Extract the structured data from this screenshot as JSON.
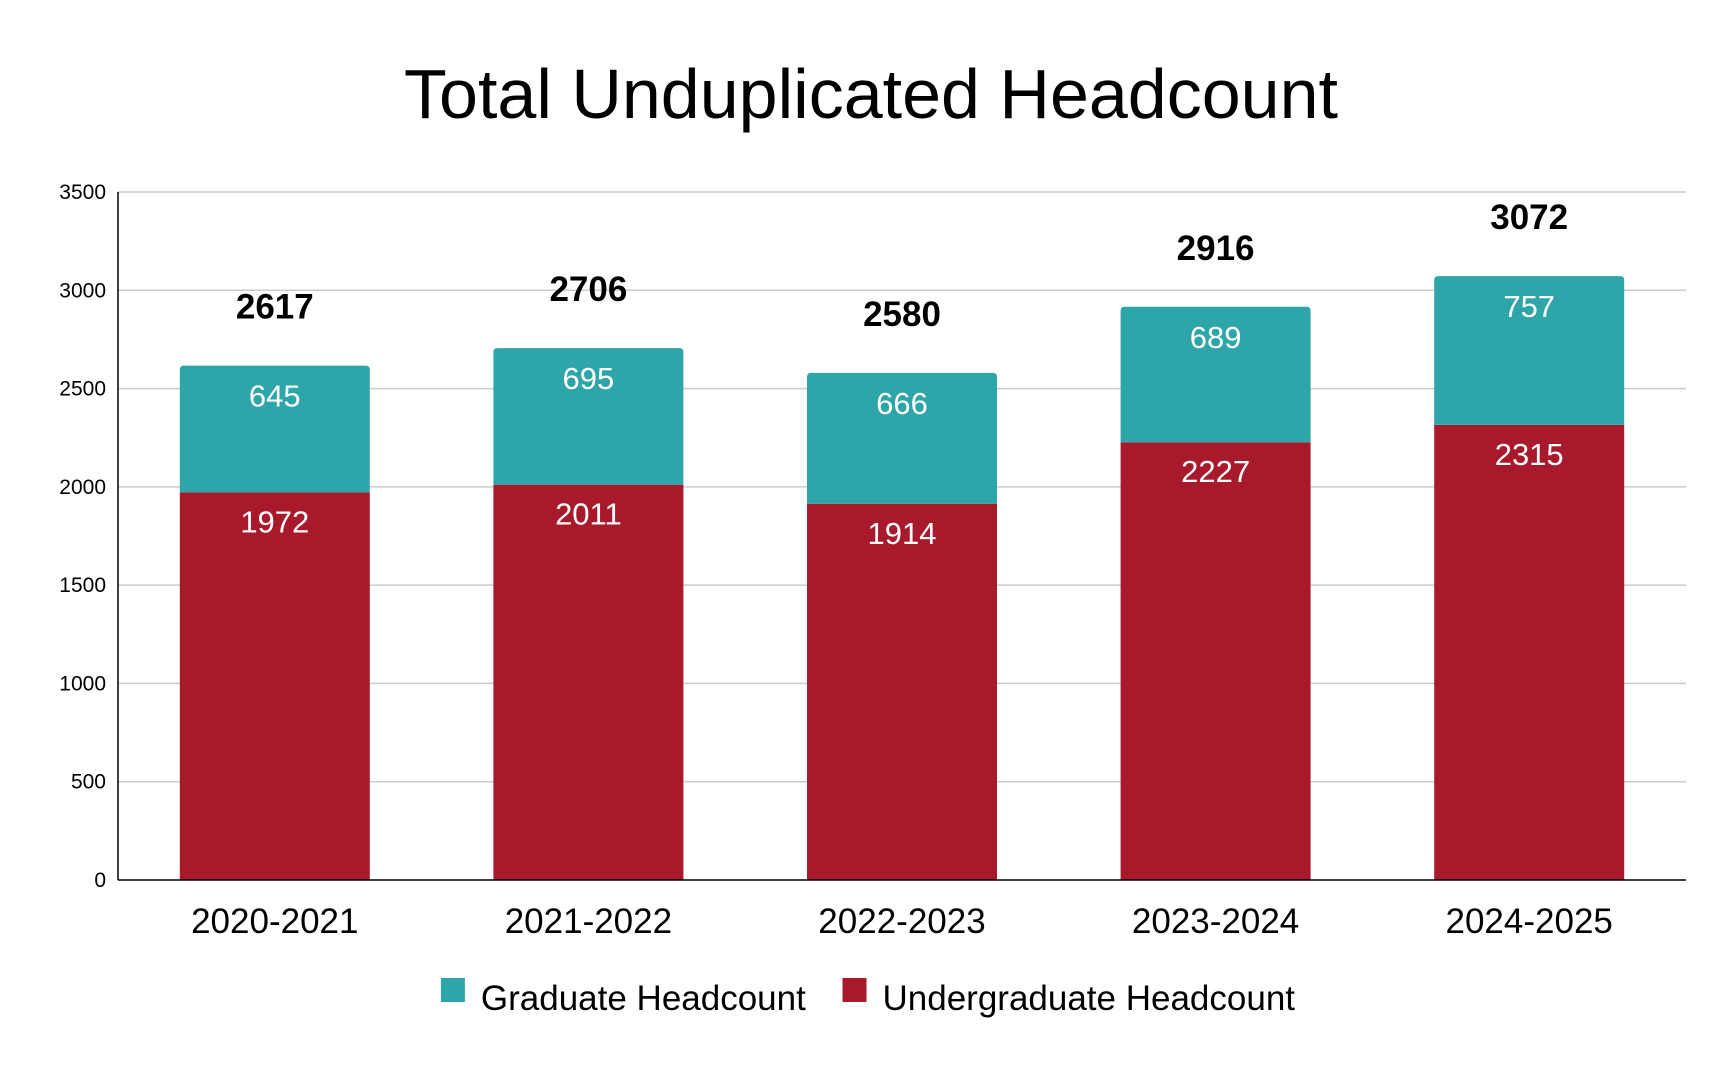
{
  "chart_data": {
    "type": "bar",
    "stacked": true,
    "title": "Total Unduplicated Headcount",
    "xlabel": "",
    "ylabel": "",
    "ylim": [
      0,
      3500
    ],
    "yticks": [
      0,
      500,
      1000,
      1500,
      2000,
      2500,
      3000,
      3500
    ],
    "grid": true,
    "legend_position": "bottom",
    "categories": [
      "2020-2021",
      "2021-2022",
      "2022-2023",
      "2023-2024",
      "2024-2025"
    ],
    "series": [
      {
        "name": "Undergraduate Headcount",
        "color": "#A8192C",
        "values": [
          1972,
          2011,
          1914,
          2227,
          2315
        ]
      },
      {
        "name": "Graduate Headcount",
        "color": "#2EA5A8",
        "values": [
          645,
          695,
          666,
          689,
          757
        ]
      }
    ],
    "totals": [
      2617,
      2706,
      2580,
      2916,
      3072
    ],
    "legend_order": [
      "Graduate Headcount",
      "Undergraduate Headcount"
    ]
  }
}
